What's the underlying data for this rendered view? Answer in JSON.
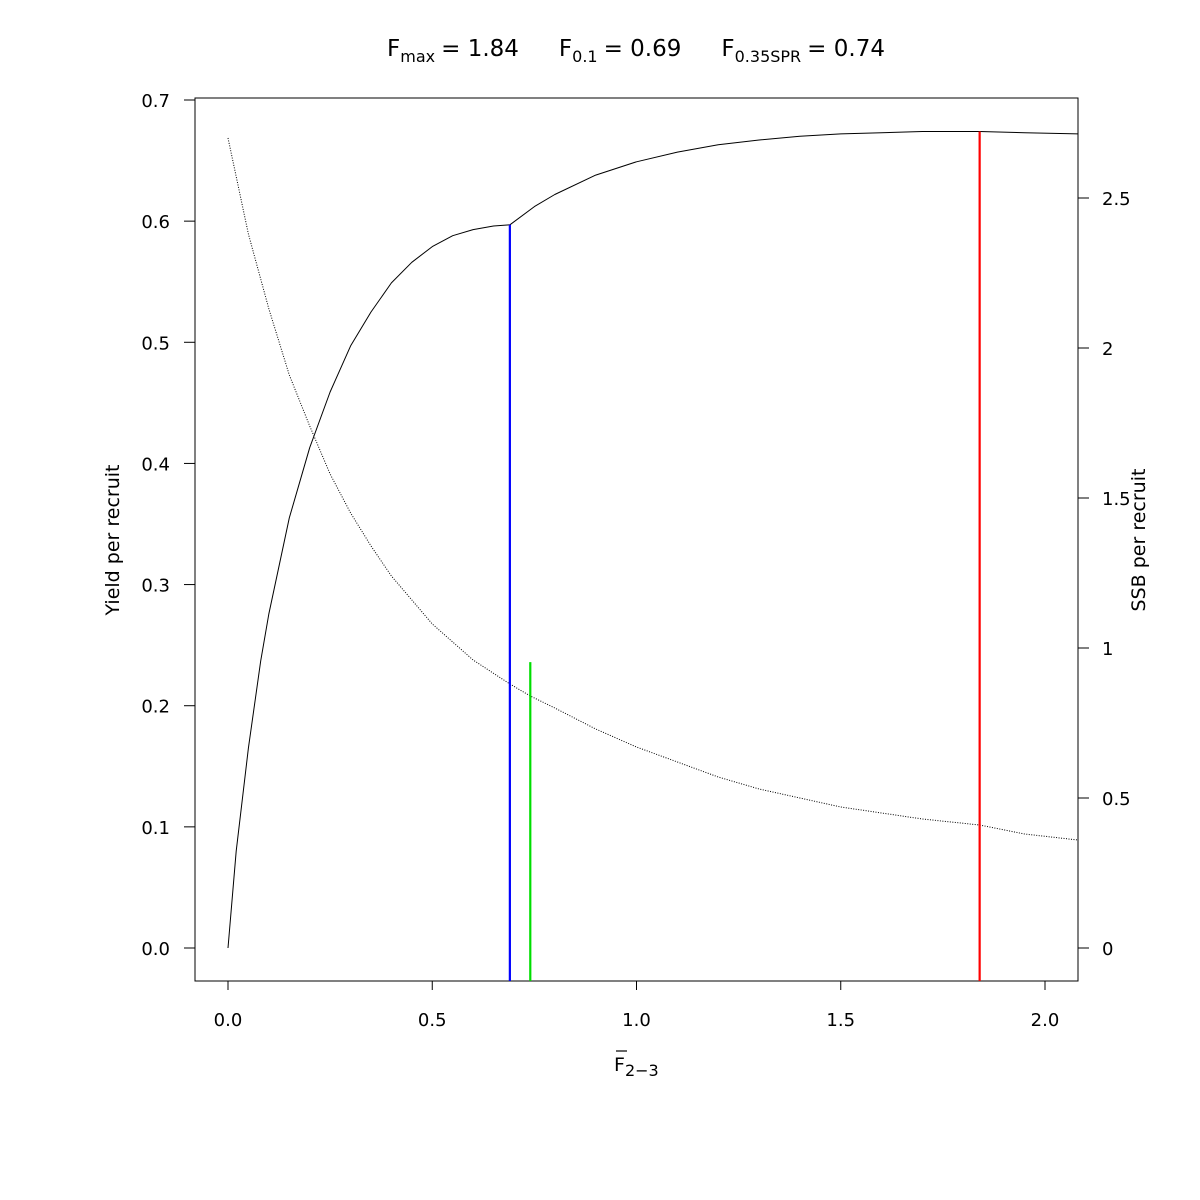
{
  "chart_data": {
    "type": "line",
    "title": {
      "fmax_base": "F",
      "fmax_sub": "max",
      "fmax_value": "= 1.84",
      "f01_base": "F",
      "f01_sub": "0.1",
      "f01_value": "= 0.69",
      "fspr_base": "F",
      "fspr_sub": "0.35SPR",
      "fspr_value": "= 0.74"
    },
    "xlabel": {
      "base": "F",
      "sub": "2−3"
    },
    "ylabel_left": "Yield per recruit",
    "ylabel_right": "SSB per recruit",
    "xlim": [
      0,
      2.08
    ],
    "ylim_left": [
      0,
      0.7
    ],
    "ylim_right": [
      0,
      2.5
    ],
    "x_ticks": [
      {
        "value": 0,
        "label": "0.0"
      },
      {
        "value": 0.5,
        "label": "0.5"
      },
      {
        "value": 1.0,
        "label": "1.0"
      },
      {
        "value": 1.5,
        "label": "1.5"
      },
      {
        "value": 2.0,
        "label": "2.0"
      }
    ],
    "y_left_ticks": [
      {
        "value": 0.0,
        "label": "0.0"
      },
      {
        "value": 0.1,
        "label": "0.1"
      },
      {
        "value": 0.2,
        "label": "0.2"
      },
      {
        "value": 0.3,
        "label": "0.3"
      },
      {
        "value": 0.4,
        "label": "0.4"
      },
      {
        "value": 0.5,
        "label": "0.5"
      },
      {
        "value": 0.6,
        "label": "0.6"
      },
      {
        "value": 0.7,
        "label": "0.7"
      }
    ],
    "y_right_ticks": [
      {
        "value": 0,
        "label": "0"
      },
      {
        "value": 0.5,
        "label": "0.5"
      },
      {
        "value": 1,
        "label": "1"
      },
      {
        "value": 1.5,
        "label": "1.5"
      },
      {
        "value": 2,
        "label": "2"
      },
      {
        "value": 2.5,
        "label": "2.5"
      }
    ],
    "series": [
      {
        "axis": "left",
        "style": "solid",
        "color": "#000000",
        "x": [
          0,
          0.02,
          0.05,
          0.08,
          0.1,
          0.15,
          0.2,
          0.25,
          0.3,
          0.35,
          0.4,
          0.45,
          0.5,
          0.55,
          0.6,
          0.65,
          0.69,
          0.75,
          0.8,
          0.9,
          1.0,
          1.1,
          1.2,
          1.3,
          1.4,
          1.5,
          1.6,
          1.7,
          1.84,
          1.95,
          2.08
        ],
        "y": [
          0,
          0.08,
          0.165,
          0.237,
          0.276,
          0.355,
          0.413,
          0.459,
          0.497,
          0.525,
          0.549,
          0.566,
          0.579,
          0.588,
          0.593,
          0.596,
          0.597,
          0.612,
          0.622,
          0.638,
          0.649,
          0.657,
          0.663,
          0.667,
          0.67,
          0.672,
          0.673,
          0.674,
          0.674,
          0.673,
          0.672
        ]
      },
      {
        "axis": "right",
        "style": "dotted",
        "color": "#000000",
        "x": [
          0,
          0.05,
          0.1,
          0.15,
          0.2,
          0.25,
          0.3,
          0.35,
          0.4,
          0.5,
          0.6,
          0.69,
          0.74,
          0.8,
          0.9,
          1.0,
          1.1,
          1.2,
          1.3,
          1.4,
          1.5,
          1.6,
          1.7,
          1.84,
          1.95,
          2.08
        ],
        "y": [
          2.7,
          2.38,
          2.13,
          1.91,
          1.74,
          1.58,
          1.45,
          1.34,
          1.24,
          1.08,
          0.96,
          0.88,
          0.84,
          0.8,
          0.73,
          0.67,
          0.62,
          0.57,
          0.53,
          0.5,
          0.47,
          0.45,
          0.43,
          0.41,
          0.38,
          0.36
        ]
      }
    ],
    "reference_lines": [
      {
        "name": "f01",
        "x": 0.69,
        "y_left_top": 0.597,
        "color": "#0000ff"
      },
      {
        "name": "fspr",
        "x": 0.74,
        "y_left_top": 0.236,
        "color": "#00dd00"
      },
      {
        "name": "fmax",
        "x": 1.84,
        "y_left_top": 0.674,
        "color": "#ff0000"
      }
    ]
  }
}
